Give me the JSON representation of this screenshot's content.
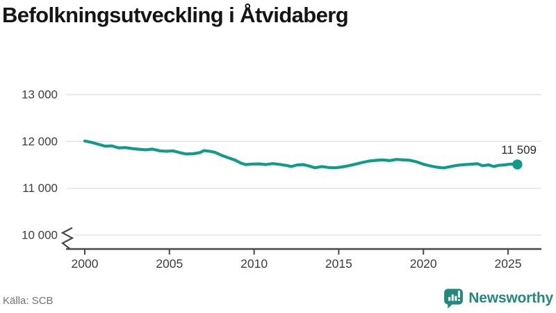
{
  "title": "Befolkningsutveckling i Åtvidaberg",
  "source": {
    "text": "Källa: SCB"
  },
  "logo": {
    "text": "Newsworthy"
  },
  "colors": {
    "accent": "#129a8b",
    "logo": "#23897d",
    "grid": "#e2e2e2",
    "axis": "#474747",
    "tick_text": "#3d3d3d",
    "end_label_text": "#2b2b2b",
    "title_text": "#151515",
    "source_text": "#717171",
    "background": "#ffffff"
  },
  "chart_data": {
    "type": "line",
    "title": "Befolkningsutveckling i Åtvidaberg",
    "xlabel": "",
    "ylabel": "",
    "grid": "horizontal",
    "legend_position": "none",
    "axis_break": true,
    "xlim": [
      1998.9,
      2027.0
    ],
    "ylim": [
      9700,
      13000
    ],
    "end_label": "11 509",
    "end_value": 11509,
    "yticks": [
      {
        "v": 13000,
        "label": "13 000"
      },
      {
        "v": 12000,
        "label": "12 000"
      },
      {
        "v": 11000,
        "label": "11 000"
      },
      {
        "v": 10000,
        "label": "10 000"
      }
    ],
    "xticks": [
      {
        "v": 2000,
        "label": "2000"
      },
      {
        "v": 2005,
        "label": "2005"
      },
      {
        "v": 2010,
        "label": "2010"
      },
      {
        "v": 2015,
        "label": "2015"
      },
      {
        "v": 2020,
        "label": "2020"
      },
      {
        "v": 2025,
        "label": "2025"
      }
    ],
    "points": [
      [
        2000.0,
        12010
      ],
      [
        2000.4,
        11980
      ],
      [
        2000.8,
        11940
      ],
      [
        2001.2,
        11900
      ],
      [
        2001.6,
        11905
      ],
      [
        2002.0,
        11862
      ],
      [
        2002.4,
        11868
      ],
      [
        2002.8,
        11848
      ],
      [
        2003.2,
        11832
      ],
      [
        2003.6,
        11820
      ],
      [
        2004.0,
        11836
      ],
      [
        2004.4,
        11802
      ],
      [
        2004.8,
        11790
      ],
      [
        2005.2,
        11800
      ],
      [
        2005.6,
        11762
      ],
      [
        2006.0,
        11732
      ],
      [
        2006.4,
        11738
      ],
      [
        2006.8,
        11762
      ],
      [
        2007.05,
        11806
      ],
      [
        2007.4,
        11788
      ],
      [
        2007.7,
        11766
      ],
      [
        2008.1,
        11700
      ],
      [
        2008.5,
        11648
      ],
      [
        2008.9,
        11598
      ],
      [
        2009.2,
        11542
      ],
      [
        2009.5,
        11506
      ],
      [
        2009.9,
        11516
      ],
      [
        2010.3,
        11520
      ],
      [
        2010.7,
        11506
      ],
      [
        2011.1,
        11526
      ],
      [
        2011.5,
        11510
      ],
      [
        2011.9,
        11488
      ],
      [
        2012.2,
        11464
      ],
      [
        2012.55,
        11498
      ],
      [
        2012.9,
        11506
      ],
      [
        2013.25,
        11474
      ],
      [
        2013.6,
        11438
      ],
      [
        2014.0,
        11464
      ],
      [
        2014.4,
        11444
      ],
      [
        2014.8,
        11438
      ],
      [
        2015.2,
        11456
      ],
      [
        2015.6,
        11482
      ],
      [
        2016.0,
        11516
      ],
      [
        2016.4,
        11552
      ],
      [
        2016.8,
        11582
      ],
      [
        2017.2,
        11596
      ],
      [
        2017.6,
        11606
      ],
      [
        2018.0,
        11590
      ],
      [
        2018.4,
        11616
      ],
      [
        2018.8,
        11606
      ],
      [
        2019.2,
        11598
      ],
      [
        2019.6,
        11564
      ],
      [
        2020.0,
        11514
      ],
      [
        2020.4,
        11478
      ],
      [
        2020.8,
        11450
      ],
      [
        2021.2,
        11434
      ],
      [
        2021.6,
        11464
      ],
      [
        2022.0,
        11490
      ],
      [
        2022.4,
        11504
      ],
      [
        2022.8,
        11514
      ],
      [
        2023.2,
        11524
      ],
      [
        2023.5,
        11480
      ],
      [
        2023.85,
        11500
      ],
      [
        2024.15,
        11464
      ],
      [
        2024.45,
        11490
      ],
      [
        2024.8,
        11500
      ],
      [
        2025.15,
        11516
      ],
      [
        2025.55,
        11509
      ]
    ]
  }
}
